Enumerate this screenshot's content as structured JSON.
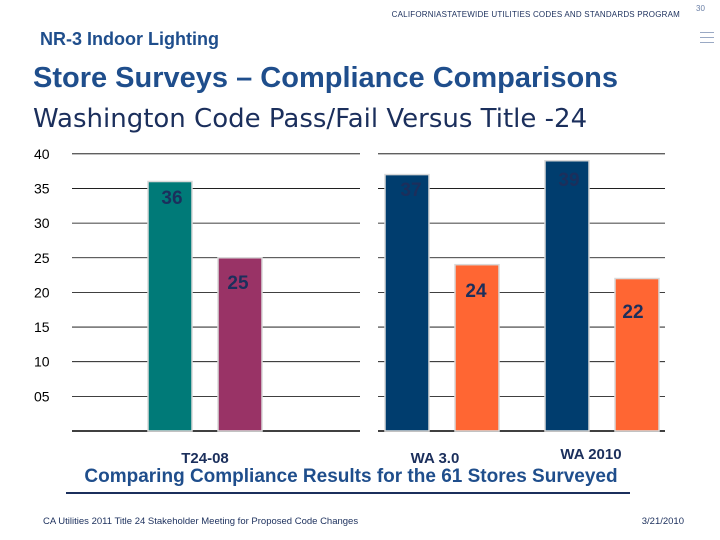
{
  "header": {
    "program": "CALIFORNIASTATEWIDE UTILITIES CODES AND STANDARDS PROGRAM",
    "page_number": "30",
    "section": "NR-3 Indoor Lighting"
  },
  "title": "Store Surveys – Compliance Comparisons",
  "subtitle": "Washington Code Pass/Fail Versus Title -24",
  "caption": "Comparing Compliance Results for the 61 Stores Surveyed",
  "footer": {
    "left": "CA Utilities 2011 Title 24 Stakeholder Meeting for Proposed Code Changes",
    "right": "3/21/2010"
  },
  "chart_data": {
    "type": "bar",
    "categories": [
      "T24-08",
      "WA 3.0",
      "WA 2010"
    ],
    "series": [
      {
        "values": [
          36,
          37,
          39
        ],
        "color": "#007a78"
      },
      {
        "values": [
          25,
          24,
          22
        ],
        "color": "#993366"
      }
    ],
    "series_colors_by_category": [
      [
        "#007a78",
        "#993366"
      ],
      [
        "#003d6e",
        "#ff6633"
      ],
      [
        "#003d6e",
        "#ff6633"
      ]
    ],
    "data_labels": [
      [
        "36",
        "25"
      ],
      [
        "37",
        "24"
      ],
      [
        "39",
        "22"
      ]
    ],
    "y_ticks": [
      "40",
      "35",
      "30",
      "25",
      "20",
      "15",
      "10",
      "05"
    ],
    "y_tick_values": [
      40,
      35,
      30,
      25,
      20,
      15,
      10,
      5
    ],
    "ylim": [
      0,
      40
    ],
    "grid": true,
    "legend": "none"
  }
}
